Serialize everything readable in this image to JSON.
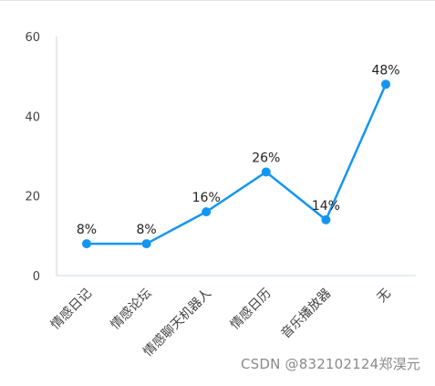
{
  "chart_data": {
    "type": "line",
    "title": "",
    "xlabel": "",
    "ylabel": "",
    "categories": [
      "情感日记",
      "情感论坛",
      "情感聊天机器人",
      "情感日历",
      "音乐播放器",
      "无"
    ],
    "series": [
      {
        "values": [
          8,
          8,
          16,
          26,
          14,
          48
        ],
        "data_labels": [
          "8%",
          "8%",
          "16%",
          "26%",
          "14%",
          "48%"
        ]
      }
    ],
    "ylim": [
      0,
      60
    ],
    "yticks": [
      0,
      20,
      40,
      60
    ],
    "ytick_labels": [
      "0",
      "20",
      "40",
      "60"
    ],
    "grid": false,
    "legend": "none",
    "colors": {
      "line": "#1496f0",
      "axis": "#cfd8e6",
      "tick_text": "#444444",
      "label_text": "#222222"
    }
  },
  "watermark": "CSDN @832102124郑淏元"
}
